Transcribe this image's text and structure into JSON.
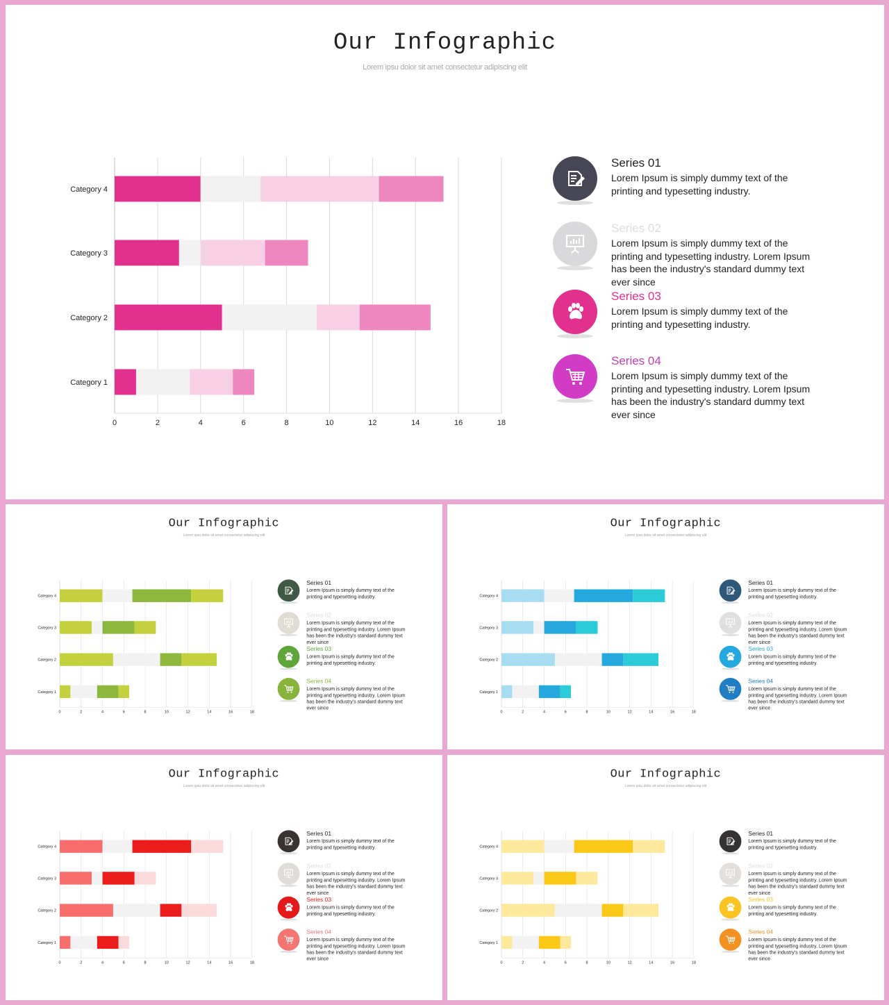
{
  "title": "Our Infographic",
  "subtitle": "Lorem ipsu dolor sit amet consectetur adipiscing elit",
  "chart_data": {
    "type": "bar",
    "orientation": "horizontal",
    "stacked": true,
    "categories": [
      "Category 1",
      "Category 2",
      "Category 3",
      "Category 4"
    ],
    "series": [
      {
        "values": [
          1,
          5,
          3,
          4
        ]
      },
      {
        "values": [
          2.5,
          4.4,
          1,
          2.8
        ]
      },
      {
        "values": [
          2,
          2,
          3,
          5.5
        ]
      },
      {
        "values": [
          1,
          3.3,
          2,
          3
        ]
      }
    ],
    "xticks": [
      "0",
      "2",
      "4",
      "6",
      "8",
      "10",
      "12",
      "14",
      "16",
      "18"
    ],
    "xlim": [
      0,
      18
    ],
    "grid": true
  },
  "legend": [
    {
      "name": "Series 01",
      "description": "Lorem Ipsum  is simply dummy  text of the printing and typesetting industry.",
      "icon": "document-edit-icon"
    },
    {
      "name": "Series 02",
      "description": "Lorem Ipsum  is simply dummy  text of the printing and typesetting industry.  Lorem Ipsum has been the industry's standard dummy  text ever since",
      "icon": "presentation-board-icon"
    },
    {
      "name": "Series 03",
      "description": "Lorem Ipsum  is simply dummy  text of the printing and typesetting industry.",
      "icon": "paw-icon"
    },
    {
      "name": "Series 04",
      "description": "Lorem Ipsum  is simply dummy  text of the printing and typesetting industry.  Lorem Ipsum has been the industry's standard dummy  text ever since",
      "icon": "shopping-cart-icon"
    }
  ],
  "themes": [
    {
      "name": "pink",
      "bars": [
        "#e2308f",
        "#f2f2f2",
        "#f7d0e6",
        "#ee86bf"
      ],
      "icons": [
        "#464655",
        "#d9d9dc",
        "#e2308f",
        "#d23bc6"
      ],
      "labels": [
        "#222222",
        "#dddddd",
        "#e2308f",
        "#c03fb7"
      ]
    },
    {
      "name": "green",
      "bars": [
        "#c4d13e",
        "#f2f2f2",
        "#8db83d",
        "#c4d13e"
      ],
      "icons": [
        "#3f5945",
        "#e0ddd5",
        "#5ea63a",
        "#88b43c"
      ],
      "labels": [
        "#222222",
        "#dddddd",
        "#5ea63a",
        "#88b43c"
      ]
    },
    {
      "name": "blue",
      "bars": [
        "#a8ddf1",
        "#f2f2f2",
        "#24a8dd",
        "#2bcbd7"
      ],
      "icons": [
        "#2d5877",
        "#e0e0e0",
        "#25a8df",
        "#227ec2"
      ],
      "labels": [
        "#222222",
        "#dddddd",
        "#25a8df",
        "#227ec2"
      ]
    },
    {
      "name": "red",
      "bars": [
        "#f76e6c",
        "#f2f2f2",
        "#ec1c1c",
        "#fbdadb"
      ],
      "icons": [
        "#3a3230",
        "#e0ddd8",
        "#e41a1a",
        "#f47673"
      ],
      "labels": [
        "#222222",
        "#dddddd",
        "#e41a1a",
        "#f47673"
      ]
    },
    {
      "name": "yellow",
      "bars": [
        "#fde89b",
        "#f2f2f2",
        "#fcc817",
        "#fde89b"
      ],
      "icons": [
        "#353232",
        "#e2dfdc",
        "#fbc422",
        "#f29223"
      ],
      "labels": [
        "#222222",
        "#dddddd",
        "#f4c426",
        "#f29223"
      ]
    }
  ]
}
